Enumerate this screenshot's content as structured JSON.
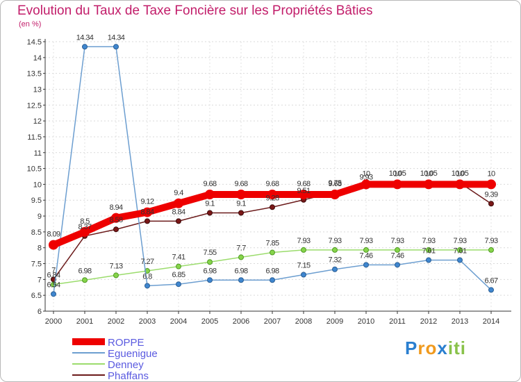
{
  "chart_data": {
    "type": "line",
    "title": "Evolution du Taux de Taxe Foncière sur les Propriétés Bâties",
    "ylabel": "(en %)",
    "xlabel": "",
    "categories": [
      "2000",
      "2001",
      "2002",
      "2003",
      "2004",
      "2005",
      "2006",
      "2007",
      "2008",
      "2009",
      "2010",
      "2011",
      "2012",
      "2013",
      "2014"
    ],
    "ylim": [
      6,
      14.5
    ],
    "yticks": [
      "6",
      "6.5",
      "7",
      "7.5",
      "8",
      "8.5",
      "9",
      "9.5",
      "10",
      "10.5",
      "11",
      "11.5",
      "12",
      "12.5",
      "13",
      "13.5",
      "14",
      "14.5"
    ],
    "grid": true,
    "legend_position": "bottom-left",
    "series": [
      {
        "name": "ROPPE",
        "color": "#ee0000",
        "values": [
          8.09,
          8.5,
          8.94,
          9.12,
          9.4,
          9.68,
          9.68,
          9.68,
          9.68,
          9.68,
          10,
          10,
          10,
          10,
          10
        ],
        "labels": [
          "8.09",
          "8.5",
          "8.94",
          "9.12",
          "9.4",
          "9.68",
          "9.68",
          "9.68",
          "9.68",
          "9.68",
          "10",
          "10",
          "10",
          "10",
          "10"
        ]
      },
      {
        "name": "Eguenigue",
        "color": "#6c9ed0",
        "values": [
          6.54,
          14.34,
          14.34,
          6.8,
          6.85,
          6.98,
          6.98,
          6.98,
          7.15,
          7.32,
          7.46,
          7.46,
          7.61,
          7.61,
          6.67
        ],
        "labels": [
          "6.54",
          "14.34",
          "14.34",
          "6.8",
          "6.85",
          "6.98",
          "6.98",
          "6.98",
          "7.15",
          "7.32",
          "7.46",
          "7.46",
          "7.61",
          "7.61",
          "6.67"
        ]
      },
      {
        "name": "Denney",
        "color": "#9bdc6c",
        "values": [
          6.84,
          6.98,
          7.13,
          7.27,
          7.41,
          7.55,
          7.7,
          7.85,
          7.93,
          7.93,
          7.93,
          7.93,
          7.93,
          7.93,
          7.93
        ],
        "labels": [
          "6.84",
          "6.98",
          "7.13",
          "7.27",
          "7.41",
          "7.55",
          "7.7",
          "7.85",
          "7.93",
          "7.93",
          "7.93",
          "7.93",
          "7.93",
          "7.93",
          "7.93"
        ]
      },
      {
        "name": "Phaffans",
        "color": "#6b1a1a",
        "values": [
          7,
          8.37,
          8.58,
          8.84,
          8.84,
          9.1,
          9.1,
          9.28,
          9.51,
          9.75,
          9.93,
          10.05,
          10.05,
          10.05,
          9.39
        ],
        "labels": [
          "7",
          "8.37",
          "8.58",
          "8.84",
          "8.84",
          "9.1",
          "9.1",
          "9.28",
          "9.51",
          "9.75",
          "9.93",
          "10.05",
          "10.05",
          "10.05",
          "9.39"
        ]
      }
    ]
  },
  "brand": {
    "letters": [
      "P",
      "r",
      "o",
      "x",
      "i",
      "t",
      "i"
    ],
    "colors": [
      "#2a7fd0",
      "#f09a1e",
      "#f09a1e",
      "#2a7fd0",
      "#89c24a",
      "#89c24a",
      "#89c24a"
    ]
  }
}
